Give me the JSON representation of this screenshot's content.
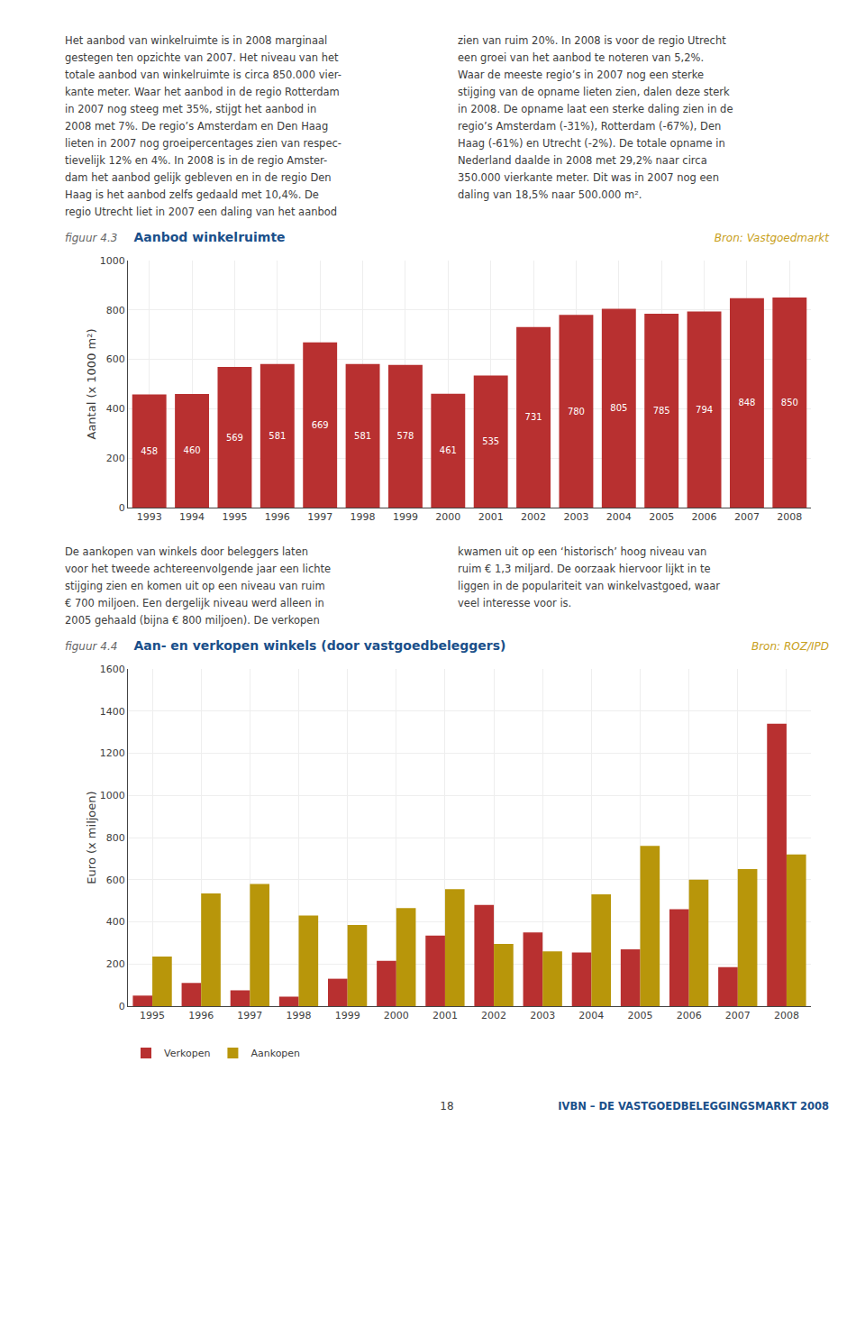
{
  "chart_data": [
    {
      "type": "bar",
      "figure_label": "figuur 4.3",
      "title": "Aanbod winkelruimte",
      "source": "Bron: Vastgoedmarkt",
      "text_left": "Het aanbod van winkelruimte is in 2008 marginaal\ngestegen ten opzichte van 2007. Het niveau van het\ntotale aanbod van winkelruimte is circa 850.000 vier-\nkante meter. Waar het aanbod in de regio Rotterdam\nin 2007 nog steeg met 35%, stijgt het aanbod in\n2008 met 7%. De regio’s Amsterdam en Den Haag\nlieten in 2007 nog groeipercentages zien van respec-\ntievelijk 12% en 4%. In 2008 is in de regio Amster-\ndam het aanbod gelijk gebleven en in de regio Den\nHaag is het aanbod zelfs gedaald met 10,4%. De\nregio Utrecht liet in 2007 een daling van het aanbod",
      "text_right": "zien van ruim 20%. In 2008 is voor de regio Utrecht\neen groei van het aanbod te noteren van 5,2%.\nWaar de meeste regio’s in 2007 nog een sterke\nstijging van de opname lieten zien, dalen deze sterk\nin 2008. De opname laat een sterke daling zien in de\nregio’s Amsterdam (-31%), Rotterdam (-67%), Den\nHaag (-61%) en Utrecht (-2%). De totale opname in\nNederland daalde in 2008 met 29,2% naar circa\n350.000 vierkante meter. Dit was in 2007 nog een\ndaling van 18,5% naar 500.000 m².",
      "categories": [
        "1993",
        "1994",
        "1995",
        "1996",
        "1997",
        "1998",
        "1999",
        "2000",
        "2001",
        "2002",
        "2003",
        "2004",
        "2005",
        "2006",
        "2007",
        "2008"
      ],
      "values": [
        458,
        460,
        569,
        581,
        669,
        581,
        578,
        461,
        535,
        731,
        780,
        805,
        785,
        794,
        848,
        850
      ],
      "color": "#b83030",
      "ylabel": "Aantal (x 1000 m²)",
      "ylim": [
        0,
        1000
      ],
      "yticks": [
        0,
        200,
        400,
        600,
        800,
        1000
      ],
      "grid": true,
      "data_labels": true
    },
    {
      "type": "bar",
      "figure_label": "figuur 4.4",
      "title": "Aan- en verkopen winkels (door vastgoedbeleggers)",
      "source": "Bron: ROZ/IPD",
      "text_left": "De aankopen van winkels door beleggers laten\nvoor het tweede achtereenvolgende jaar een lichte\nstijging zien en komen uit op een niveau van ruim\n€ 700 miljoen. Een dergelijk niveau werd alleen in\n2005 gehaald (bijna € 800 miljoen). De verkopen",
      "text_right": "kwamen uit op een ‘historisch’ hoog niveau van\nruim € 1,3 miljard. De oorzaak hiervoor lijkt in te\nliggen in de populariteit van winkelvastgoed, waar\nveel interesse voor is.",
      "categories": [
        "1995",
        "1996",
        "1997",
        "1998",
        "1999",
        "2000",
        "2001",
        "2002",
        "2003",
        "2004",
        "2005",
        "2006",
        "2007",
        "2008"
      ],
      "series": [
        {
          "name": "Verkopen",
          "color": "#b83030",
          "values": [
            50,
            110,
            75,
            45,
            130,
            215,
            335,
            480,
            350,
            255,
            270,
            460,
            185,
            1340
          ]
        },
        {
          "name": "Aankopen",
          "color": "#b8960a",
          "values": [
            235,
            535,
            580,
            430,
            385,
            465,
            555,
            295,
            260,
            530,
            760,
            600,
            650,
            720
          ]
        }
      ],
      "ylabel": "Euro (x miljoen)",
      "ylim": [
        0,
        1600
      ],
      "yticks": [
        0,
        200,
        400,
        600,
        800,
        1000,
        1200,
        1400,
        1600
      ],
      "grid": true,
      "legend": "bottom"
    }
  ],
  "page_number": "18",
  "footer": "IVBN – DE VASTGOEDBELEGGINGSMARKT 2008"
}
